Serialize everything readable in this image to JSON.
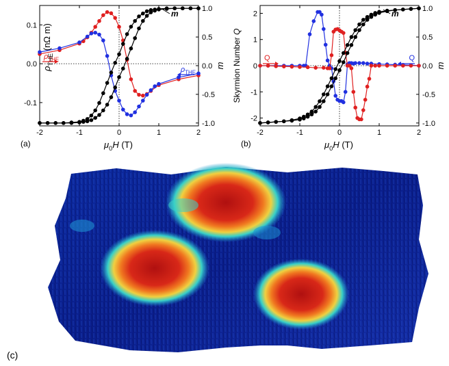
{
  "chart_data": [
    {
      "panel_label": "(a)",
      "type": "line",
      "xlabel_sym": "μ",
      "xlabel_sub": "0",
      "xlabel_var": "H",
      "xlabel_unit": " (T)",
      "ylabel_left_sym": "ρ",
      "ylabel_left_sub": "THE",
      "ylabel_left_unit": " (nΩ m)",
      "ylabel_right": "m",
      "xlim": [
        -2,
        2
      ],
      "ylim_left": [
        -0.16,
        0.15
      ],
      "ylim_right": [
        -1.05,
        1.05
      ],
      "x_ticks": [
        "-2",
        "-1",
        "0",
        "1",
        "2"
      ],
      "y_left_ticks": [
        "0.1",
        "0.0",
        "-0.1"
      ],
      "y_right_ticks": [
        "1.0",
        "0.5",
        "0.0",
        "-0.5",
        "-1.0"
      ],
      "annotations": [
        {
          "sym": "ρ",
          "sub": "THE",
          "color": "#e02020",
          "arrow": "right"
        },
        {
          "sym": "ρ",
          "sub": "THE",
          "color": "#2030e0",
          "arrow": "left"
        },
        {
          "text": "m",
          "color": "#000000"
        }
      ],
      "series": [
        {
          "color": "#e02020",
          "axis": "left",
          "x": [
            -2.0,
            -1.5,
            -1.0,
            -0.9,
            -0.8,
            -0.7,
            -0.6,
            -0.5,
            -0.4,
            -0.3,
            -0.2,
            -0.1,
            0.0,
            0.1,
            0.2,
            0.3,
            0.4,
            0.5,
            0.6,
            0.7,
            0.8,
            1.0,
            1.5,
            2.0
          ],
          "y": [
            0.025,
            0.035,
            0.052,
            0.058,
            0.068,
            0.08,
            0.095,
            0.11,
            0.125,
            0.133,
            0.13,
            0.118,
            0.095,
            0.06,
            0.01,
            -0.04,
            -0.07,
            -0.08,
            -0.082,
            -0.078,
            -0.07,
            -0.055,
            -0.04,
            -0.03
          ]
        },
        {
          "color": "#2030e0",
          "axis": "left",
          "x": [
            -2.0,
            -1.5,
            -1.0,
            -0.8,
            -0.7,
            -0.6,
            -0.5,
            -0.4,
            -0.3,
            -0.2,
            -0.1,
            0.0,
            0.1,
            0.2,
            0.3,
            0.4,
            0.5,
            0.6,
            0.7,
            0.8,
            0.9,
            1.0,
            1.5,
            2.0
          ],
          "y": [
            0.03,
            0.04,
            0.055,
            0.07,
            0.078,
            0.08,
            0.075,
            0.06,
            0.02,
            -0.03,
            -0.07,
            -0.095,
            -0.118,
            -0.13,
            -0.133,
            -0.125,
            -0.11,
            -0.095,
            -0.08,
            -0.068,
            -0.058,
            -0.052,
            -0.035,
            -0.025
          ]
        },
        {
          "color": "#000000",
          "axis": "right",
          "x": [
            -2.0,
            -1.8,
            -1.6,
            -1.4,
            -1.2,
            -1.0,
            -0.9,
            -0.8,
            -0.7,
            -0.6,
            -0.5,
            -0.4,
            -0.3,
            -0.2,
            -0.1,
            0.0,
            0.1,
            0.2,
            0.3,
            0.4,
            0.5,
            0.6,
            0.7,
            0.8,
            0.9,
            1.0,
            1.2,
            1.4,
            1.6,
            1.8,
            2.0
          ],
          "y": [
            -1.0,
            -1.0,
            -1.0,
            -1.0,
            -0.99,
            -0.98,
            -0.96,
            -0.93,
            -0.87,
            -0.78,
            -0.65,
            -0.48,
            -0.3,
            -0.12,
            0.05,
            0.2,
            0.38,
            0.55,
            0.68,
            0.78,
            0.86,
            0.91,
            0.95,
            0.97,
            0.98,
            0.99,
            1.0,
            1.0,
            1.0,
            1.0,
            1.0
          ]
        },
        {
          "color": "#000000",
          "axis": "right",
          "x": [
            -2.0,
            -1.8,
            -1.6,
            -1.4,
            -1.2,
            -1.0,
            -0.9,
            -0.8,
            -0.7,
            -0.6,
            -0.5,
            -0.4,
            -0.3,
            -0.2,
            -0.1,
            0.0,
            0.1,
            0.2,
            0.3,
            0.4,
            0.5,
            0.6,
            0.7,
            0.8,
            0.9,
            1.0,
            1.2,
            1.4,
            1.6,
            1.8,
            2.0
          ],
          "y": [
            -1.0,
            -1.0,
            -1.0,
            -1.0,
            -1.0,
            -0.99,
            -0.98,
            -0.97,
            -0.95,
            -0.91,
            -0.86,
            -0.78,
            -0.68,
            -0.55,
            -0.38,
            -0.2,
            -0.05,
            0.12,
            0.3,
            0.48,
            0.65,
            0.78,
            0.87,
            0.93,
            0.96,
            0.98,
            0.99,
            1.0,
            1.0,
            1.0,
            1.0
          ]
        }
      ]
    },
    {
      "panel_label": "(b)",
      "type": "line",
      "xlabel_sym": "μ",
      "xlabel_sub": "0",
      "xlabel_var": "H",
      "xlabel_unit": " (T)",
      "ylabel_left": "Skyrmion Number Q",
      "ylabel_right": "m",
      "xlim": [
        -2,
        2
      ],
      "ylim_left": [
        -2.3,
        2.3
      ],
      "ylim_right": [
        -1.05,
        1.05
      ],
      "x_ticks": [
        "-2",
        "-1",
        "0",
        "1",
        "2"
      ],
      "y_left_ticks": [
        "2",
        "1",
        "0",
        "-1",
        "-2"
      ],
      "y_right_ticks": [
        "1.0",
        "0.5",
        "0.0",
        "-0.5",
        "-1.0"
      ],
      "annotations": [
        {
          "text": "Q",
          "color": "#e02020",
          "arrow": "right"
        },
        {
          "text": "Q",
          "color": "#2030e0",
          "arrow": "left"
        },
        {
          "text": "m",
          "color": "#000000"
        }
      ],
      "series": [
        {
          "color": "#2030e0",
          "axis": "left",
          "x": [
            -2.0,
            -1.8,
            -1.6,
            -1.4,
            -1.2,
            -1.0,
            -0.9,
            -0.85,
            -0.75,
            -0.65,
            -0.55,
            -0.5,
            -0.45,
            -0.4,
            -0.35,
            -0.3,
            -0.25,
            -0.2,
            -0.15,
            -0.1,
            -0.05,
            0.0,
            0.05,
            0.1,
            0.15,
            0.2,
            0.25,
            0.3,
            0.35,
            0.4,
            0.5,
            0.6,
            0.7,
            0.8,
            1.0,
            1.2,
            1.4,
            1.6,
            1.8,
            2.0
          ],
          "y": [
            0.0,
            0.0,
            0.0,
            0.0,
            0.0,
            0.0,
            0.0,
            0.0,
            1.2,
            1.7,
            2.05,
            2.05,
            1.95,
            1.4,
            0.8,
            0.2,
            0.0,
            -0.1,
            -0.6,
            -1.15,
            -1.3,
            -1.35,
            -1.35,
            -1.4,
            -1.0,
            0.05,
            0.1,
            0.1,
            0.08,
            0.1,
            0.1,
            0.1,
            0.08,
            0.08,
            0.06,
            0.05,
            0.04,
            0.03,
            0.02,
            0.0
          ]
        },
        {
          "color": "#e02020",
          "axis": "left",
          "x": [
            -2.0,
            -1.8,
            -1.6,
            -1.4,
            -1.2,
            -1.0,
            -0.8,
            -0.6,
            -0.4,
            -0.3,
            -0.25,
            -0.2,
            -0.15,
            -0.1,
            -0.05,
            0.0,
            0.05,
            0.1,
            0.15,
            0.2,
            0.25,
            0.3,
            0.35,
            0.4,
            0.45,
            0.5,
            0.55,
            0.6,
            0.65,
            0.7,
            0.75,
            0.8,
            0.9,
            1.0,
            1.2,
            1.4,
            1.6,
            1.8,
            2.0
          ],
          "y": [
            0.0,
            0.0,
            -0.02,
            -0.03,
            -0.04,
            -0.05,
            -0.06,
            -0.08,
            -0.08,
            -0.1,
            -0.1,
            0.4,
            1.3,
            1.38,
            1.4,
            1.35,
            1.3,
            1.25,
            0.5,
            0.0,
            0.0,
            -0.1,
            -1.0,
            -1.6,
            -2.0,
            -2.05,
            -2.05,
            -1.7,
            -1.3,
            -0.8,
            -0.5,
            0.0,
            0.0,
            0.0,
            0.0,
            0.0,
            0.0,
            0.0,
            0.0
          ]
        },
        {
          "color": "#000000",
          "axis": "right",
          "x": [
            -2.0,
            -1.8,
            -1.6,
            -1.4,
            -1.2,
            -1.0,
            -0.9,
            -0.8,
            -0.7,
            -0.6,
            -0.5,
            -0.4,
            -0.3,
            -0.2,
            -0.1,
            0.0,
            0.1,
            0.2,
            0.3,
            0.4,
            0.5,
            0.6,
            0.7,
            0.8,
            0.9,
            1.0,
            1.2,
            1.4,
            1.6,
            1.8,
            2.0
          ],
          "y": [
            -1.0,
            -0.99,
            -0.98,
            -0.97,
            -0.95,
            -0.92,
            -0.89,
            -0.85,
            -0.8,
            -0.72,
            -0.62,
            -0.5,
            -0.36,
            -0.22,
            -0.06,
            0.08,
            0.22,
            0.36,
            0.5,
            0.62,
            0.72,
            0.8,
            0.85,
            0.89,
            0.92,
            0.94,
            0.96,
            0.97,
            0.98,
            0.99,
            1.0
          ]
        },
        {
          "color": "#000000",
          "axis": "right",
          "x": [
            -2.0,
            -1.8,
            -1.6,
            -1.4,
            -1.2,
            -1.0,
            -0.9,
            -0.8,
            -0.7,
            -0.6,
            -0.5,
            -0.4,
            -0.3,
            -0.2,
            -0.1,
            0.0,
            0.1,
            0.2,
            0.3,
            0.4,
            0.5,
            0.6,
            0.7,
            0.8,
            0.9,
            1.0,
            1.2,
            1.4,
            1.6,
            1.8,
            2.0
          ],
          "y": [
            -1.0,
            -0.99,
            -0.98,
            -0.97,
            -0.96,
            -0.94,
            -0.92,
            -0.89,
            -0.85,
            -0.8,
            -0.72,
            -0.62,
            -0.5,
            -0.36,
            -0.22,
            -0.08,
            0.06,
            0.22,
            0.36,
            0.5,
            0.62,
            0.72,
            0.8,
            0.85,
            0.89,
            0.92,
            0.95,
            0.97,
            0.98,
            0.99,
            1.0
          ]
        }
      ]
    },
    {
      "panel_label": "(c)",
      "type": "heatmap",
      "colors": {
        "background": "#0a1e8c",
        "mid": "#1e8fd0",
        "cyan": "#38d0c8",
        "yellow": "#f0d040",
        "orange": "#f07820",
        "red": "#c81818"
      },
      "skyrmion_count": 4
    }
  ]
}
